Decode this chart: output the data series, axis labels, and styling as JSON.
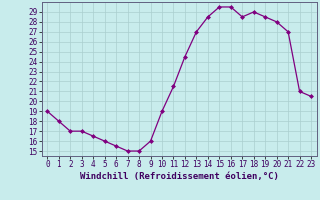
{
  "x": [
    0,
    1,
    2,
    3,
    4,
    5,
    6,
    7,
    8,
    9,
    10,
    11,
    12,
    13,
    14,
    15,
    16,
    17,
    18,
    19,
    20,
    21,
    22,
    23
  ],
  "y": [
    19,
    18,
    17,
    17,
    16.5,
    16,
    15.5,
    15,
    15,
    16,
    19,
    21.5,
    24.5,
    27,
    28.5,
    29.5,
    29.5,
    28.5,
    29,
    28.5,
    28,
    27,
    21,
    20.5
  ],
  "line_color": "#800080",
  "marker": "D",
  "marker_size": 2,
  "bg_color": "#c8ecec",
  "grid_color": "#aacfcf",
  "xlabel": "Windchill (Refroidissement éolien,°C)",
  "xlim": [
    -0.5,
    23.5
  ],
  "ylim": [
    14.5,
    30
  ],
  "yticks": [
    15,
    16,
    17,
    18,
    19,
    20,
    21,
    22,
    23,
    24,
    25,
    26,
    27,
    28,
    29
  ],
  "xticks": [
    0,
    1,
    2,
    3,
    4,
    5,
    6,
    7,
    8,
    9,
    10,
    11,
    12,
    13,
    14,
    15,
    16,
    17,
    18,
    19,
    20,
    21,
    22,
    23
  ],
  "tick_label_size": 5.5,
  "xlabel_size": 6.5,
  "spine_color": "#606080",
  "linewidth": 0.9
}
